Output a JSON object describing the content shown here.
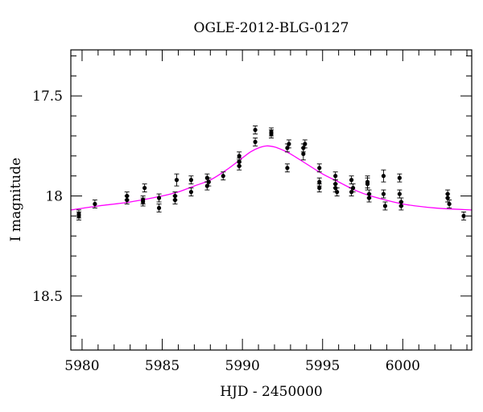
{
  "chart_data": {
    "type": "scatter",
    "title": "OGLE-2012-BLG-0127",
    "xlabel": "HJD - 2450000",
    "ylabel": "I magnitude",
    "xlim": [
      5979.3,
      6004.3
    ],
    "ylim": [
      18.77,
      17.27
    ],
    "y_inverted": true,
    "x_ticks": [
      5980,
      5985,
      5990,
      5995,
      6000
    ],
    "x_tick_labels": [
      "5980",
      "5985",
      "5990",
      "5995",
      "6000"
    ],
    "y_ticks": [
      17.5,
      18,
      18.5
    ],
    "y_tick_labels": [
      "17.5",
      "18",
      "18.5"
    ],
    "grid": false,
    "colors": {
      "points": "#000000",
      "model": "#ff00ff",
      "axes": "#000000"
    },
    "series": [
      {
        "kind": "points",
        "x": [
          5979.8,
          5979.8,
          5980.8,
          5982.8,
          5982.8,
          5983.8,
          5983.8,
          5983.9,
          5984.8,
          5984.8,
          5985.8,
          5985.8,
          5985.9,
          5986.8,
          5986.8,
          5987.8,
          5987.8,
          5987.9,
          5988.8,
          5989.8,
          5989.8,
          5989.8,
          5990.8,
          5990.8,
          5991.8,
          5991.8,
          5992.8,
          5992.8,
          5992.9,
          5993.8,
          5993.8,
          5993.9,
          5994.8,
          5994.8,
          5994.8,
          5995.8,
          5995.8,
          5995.8,
          5995.9,
          5996.8,
          5996.8,
          5996.9,
          5997.8,
          5997.8,
          5997.9,
          5997.9,
          5998.8,
          5998.8,
          5998.9,
          5999.8,
          5999.8,
          5999.9,
          5999.9,
          6002.8,
          6002.8,
          6002.9,
          6003.8
        ],
        "y": [
          18.09,
          18.1,
          18.04,
          18.0,
          18.02,
          18.02,
          18.03,
          17.96,
          18.01,
          18.06,
          18.0,
          18.02,
          17.92,
          17.92,
          17.98,
          17.91,
          17.95,
          17.93,
          17.9,
          17.8,
          17.83,
          17.85,
          17.67,
          17.73,
          17.68,
          17.69,
          17.76,
          17.86,
          17.74,
          17.76,
          17.79,
          17.74,
          17.86,
          17.93,
          17.96,
          17.9,
          17.94,
          17.96,
          17.98,
          17.98,
          17.92,
          17.96,
          17.93,
          17.94,
          17.99,
          18.01,
          17.9,
          17.99,
          18.05,
          17.91,
          17.99,
          18.03,
          18.05,
          17.99,
          18.01,
          18.04,
          18.1
        ],
        "err": [
          0.02,
          0.02,
          0.02,
          0.02,
          0.02,
          0.02,
          0.02,
          0.02,
          0.02,
          0.02,
          0.02,
          0.02,
          0.03,
          0.02,
          0.02,
          0.02,
          0.02,
          0.02,
          0.02,
          0.02,
          0.02,
          0.02,
          0.02,
          0.02,
          0.02,
          0.02,
          0.02,
          0.02,
          0.02,
          0.02,
          0.03,
          0.02,
          0.02,
          0.02,
          0.02,
          0.02,
          0.02,
          0.02,
          0.02,
          0.02,
          0.02,
          0.02,
          0.03,
          0.03,
          0.02,
          0.02,
          0.03,
          0.02,
          0.02,
          0.02,
          0.02,
          0.02,
          0.02,
          0.02,
          0.02,
          0.02,
          0.02
        ]
      },
      {
        "kind": "model",
        "x": [
          5979.3,
          5981,
          5983,
          5985,
          5986,
          5987,
          5988,
          5989,
          5990,
          5990.5,
          5991,
          5991.5,
          5992,
          5992.5,
          5993,
          5994,
          5995,
          5996,
          5997,
          5998,
          6000,
          6002,
          6004.3
        ],
        "y": [
          18.07,
          18.05,
          18.03,
          18.0,
          17.98,
          17.95,
          17.92,
          17.87,
          17.81,
          17.78,
          17.76,
          17.75,
          17.755,
          17.77,
          17.79,
          17.84,
          17.89,
          17.93,
          17.97,
          18.0,
          18.04,
          18.06,
          18.07
        ]
      }
    ]
  }
}
